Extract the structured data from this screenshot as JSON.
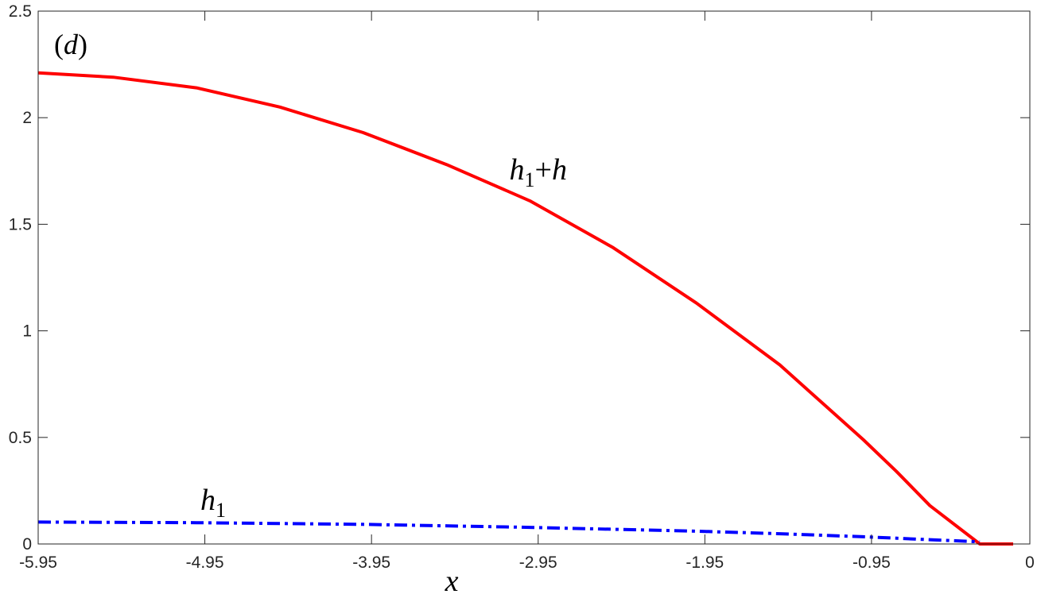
{
  "chart_data": {
    "type": "line",
    "panel_label": "(d)",
    "xlabel": "x",
    "ylabel": "",
    "xlim": [
      -5.95,
      0
    ],
    "ylim": [
      0,
      2.5
    ],
    "xticks": [
      -5.95,
      -4.95,
      -3.95,
      -2.95,
      -1.95,
      -0.95,
      0
    ],
    "xtick_labels": [
      "-5.95",
      "-4.95",
      "-3.95",
      "-2.95",
      "-1.95",
      "-0.95",
      "0"
    ],
    "yticks": [
      0,
      0.5,
      1,
      1.5,
      2,
      2.5
    ],
    "ytick_labels": [
      "0",
      "0.5",
      "1",
      "1.5",
      "2",
      "2.5"
    ],
    "grid": false,
    "series": [
      {
        "name": "h1+h",
        "label_base": "h",
        "label_sub": "1",
        "label_rest": "+h",
        "color": "#ff0000",
        "style": "solid",
        "x": [
          -5.95,
          -5.5,
          -5.0,
          -4.5,
          -4.0,
          -3.5,
          -3.0,
          -2.5,
          -2.0,
          -1.5,
          -1.0,
          -0.8,
          -0.6,
          -0.3,
          -0.1
        ],
        "y": [
          2.21,
          2.19,
          2.14,
          2.05,
          1.93,
          1.78,
          1.61,
          1.39,
          1.13,
          0.84,
          0.49,
          0.34,
          0.18,
          0.0,
          0.0
        ]
      },
      {
        "name": "h1",
        "label_base": "h",
        "label_sub": "1",
        "label_rest": "",
        "color": "#0000ff",
        "style": "dashdot",
        "x": [
          -5.95,
          -5.0,
          -4.0,
          -3.0,
          -2.0,
          -1.5,
          -1.0,
          -0.6,
          -0.3
        ],
        "y": [
          0.103,
          0.1,
          0.092,
          0.078,
          0.06,
          0.048,
          0.034,
          0.02,
          0.01
        ]
      }
    ],
    "annotations": [
      {
        "series": "h1+h",
        "x": -2.95,
        "y": 1.71
      },
      {
        "series": "h1",
        "x": -4.9,
        "y": 0.16
      }
    ]
  }
}
